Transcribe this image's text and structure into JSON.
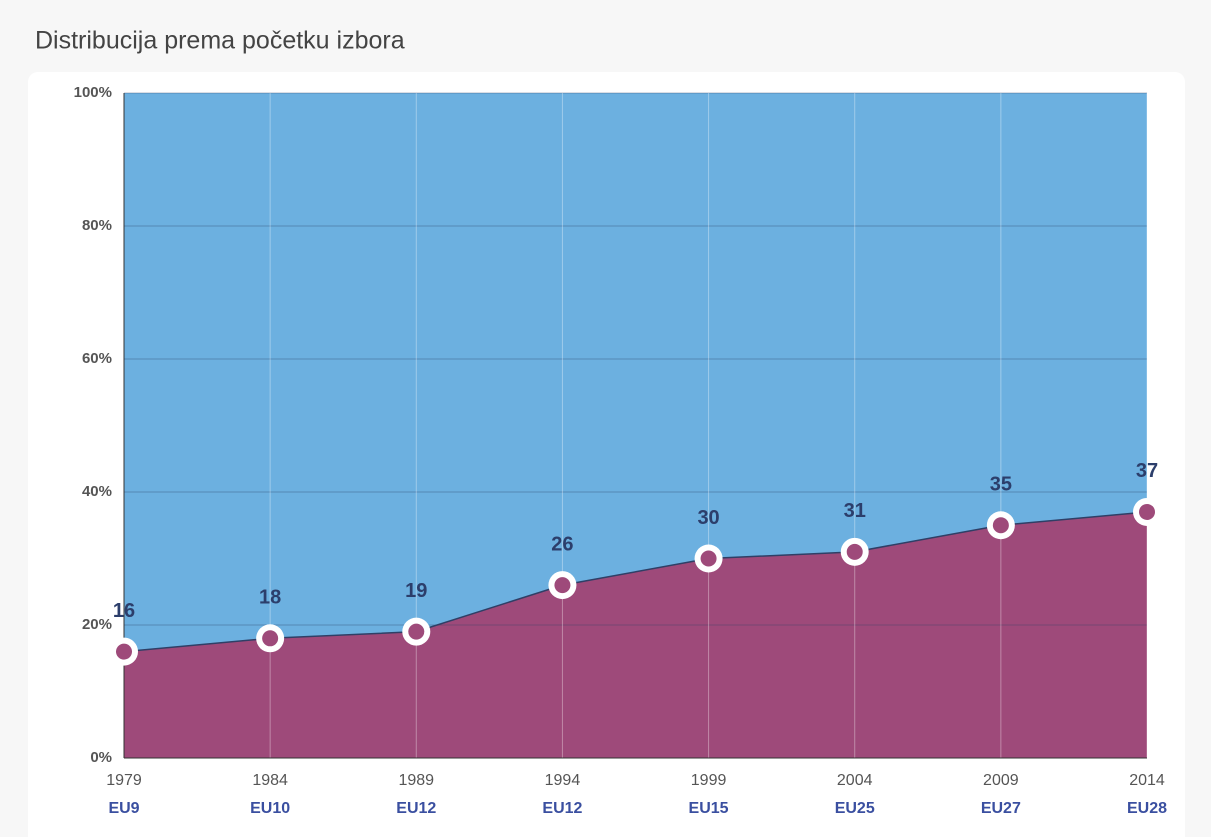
{
  "chart_data": {
    "type": "area",
    "title": "Distribucija prema početku izbora",
    "categories": [
      "1979",
      "1984",
      "1989",
      "1994",
      "1999",
      "2004",
      "2009",
      "2014"
    ],
    "subcategories": [
      "EU9",
      "EU10",
      "EU12",
      "EU12",
      "EU15",
      "EU25",
      "EU27",
      "EU28"
    ],
    "values": [
      16,
      18,
      19,
      26,
      30,
      31,
      35,
      37
    ],
    "color": "#9e4a7a",
    "background_color": "#6cb0e0",
    "ylim": [
      0,
      100
    ],
    "yticks": [
      {
        "value": 0,
        "label": "0%"
      },
      {
        "value": 20,
        "label": "20%"
      },
      {
        "value": 40,
        "label": "40%"
      },
      {
        "value": 60,
        "label": "60%"
      },
      {
        "value": 80,
        "label": "80%"
      },
      {
        "value": 100,
        "label": "100%"
      }
    ],
    "grid": true
  }
}
